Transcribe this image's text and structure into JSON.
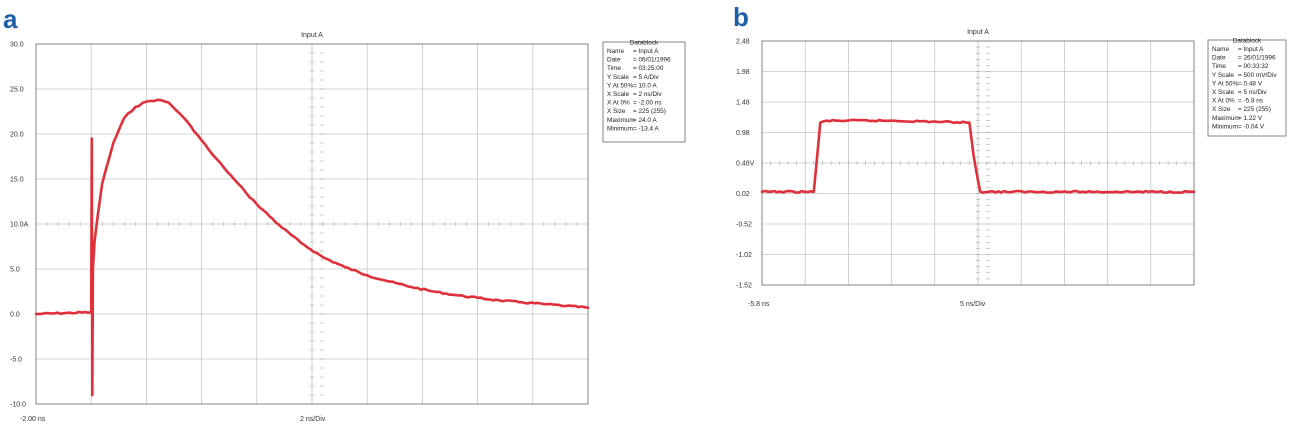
{
  "chart_data": [
    {
      "panel": "a",
      "type": "line",
      "title": "Input A",
      "ylim": [
        -10,
        30
      ],
      "yticks": [
        "30.0",
        "25.0",
        "20.0",
        "15.0",
        "10.0A",
        "5.0",
        "0.0",
        "-5.0",
        "-10.0"
      ],
      "xticks": [
        "-2.00 ns",
        "2 ns/Div"
      ],
      "grid": true,
      "series": [
        {
          "x": [
            0,
            5,
            5.05,
            5.1,
            5.15,
            5.3,
            5.6,
            6,
            7,
            8,
            9,
            10,
            11,
            12,
            13,
            14,
            15,
            16,
            17,
            18,
            19,
            20,
            22,
            24,
            26,
            28,
            30,
            32,
            34,
            36,
            38,
            40,
            42,
            44,
            46,
            48,
            50
          ],
          "y": [
            0.0,
            0.2,
            19.5,
            -9.0,
            5.0,
            8.0,
            11.0,
            14.5,
            19.0,
            21.8,
            23.0,
            23.6,
            23.8,
            23.5,
            22.3,
            20.9,
            19.3,
            17.7,
            16.3,
            14.9,
            13.5,
            12.2,
            9.9,
            7.9,
            6.3,
            5.2,
            4.3,
            3.6,
            3.0,
            2.5,
            2.1,
            1.8,
            1.5,
            1.3,
            1.1,
            0.9,
            0.7
          ]
        }
      ],
      "datablock": {
        "heading": "Datablock",
        "rows": [
          [
            "Name",
            "= Input A"
          ],
          [
            "Date",
            "= 06/01/1996"
          ],
          [
            "Time",
            "= 03:25:00"
          ],
          [
            "Y Scale",
            "= 5    A/Div"
          ],
          [
            "Y At 50%",
            "= 10.0   A"
          ],
          [
            "X Scale",
            "= 2    ns/Div"
          ],
          [
            "X At 0%",
            "= -2.00 ns"
          ],
          [
            "X Size",
            "= 225 (255)"
          ],
          [
            "Maximum",
            "= 24.0   A"
          ],
          [
            "Minimum",
            "= -13.4   A"
          ]
        ]
      }
    },
    {
      "panel": "b",
      "type": "line",
      "title": "Input A",
      "ylim": [
        -1.5,
        2.48
      ],
      "yticks": [
        "2.48",
        "1.98",
        "1.48",
        "0.98",
        "0.48V",
        "0.02",
        "-0.52",
        "-1.02",
        "-1.52"
      ],
      "xticks": [
        "-5.8 ns",
        "5 ns/Div"
      ],
      "grid": true,
      "series": [
        {
          "x": [
            0,
            12,
            13.5,
            15,
            30,
            48,
            49,
            50.5,
            100
          ],
          "y": [
            0.02,
            0.02,
            1.15,
            1.18,
            1.18,
            1.15,
            0.6,
            0.02,
            0.02
          ]
        }
      ],
      "datablock": {
        "heading": "Datablock",
        "rows": [
          [
            "Name",
            "= Input A"
          ],
          [
            "Date",
            "= 26/01/1996"
          ],
          [
            "Time",
            "= 00:33:32"
          ],
          [
            "Y Scale",
            "= 500   mV/Div"
          ],
          [
            "Y At 50%",
            "= 0.48 V"
          ],
          [
            "X Scale",
            "= 5     ns/Div"
          ],
          [
            "X At 0%",
            "= -5.8  ns"
          ],
          [
            "X Size",
            "= 225 (255)"
          ],
          [
            "Maximum",
            "= 1.22 V"
          ],
          [
            "Minimum",
            "= -0.04 V"
          ]
        ]
      }
    }
  ]
}
